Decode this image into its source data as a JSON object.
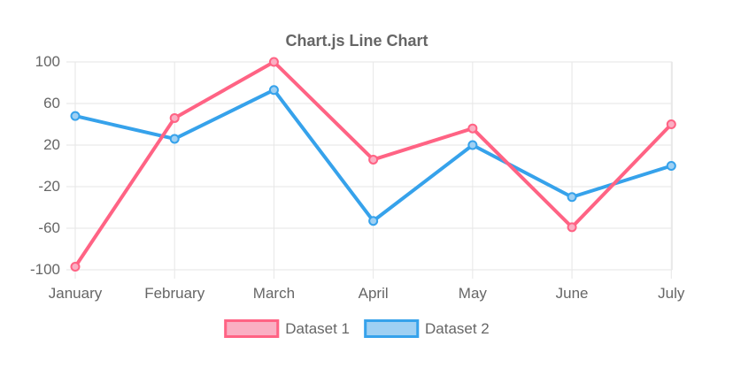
{
  "chart_data": {
    "type": "line",
    "title": "Chart.js Line Chart",
    "categories": [
      "January",
      "February",
      "March",
      "April",
      "May",
      "June",
      "July"
    ],
    "series": [
      {
        "name": "Dataset 1",
        "color": "#FF6384",
        "point_fill": "#FAAFC3",
        "values": [
          -97,
          46,
          100,
          6,
          36,
          -59,
          40
        ]
      },
      {
        "name": "Dataset 2",
        "color": "#36A2EB",
        "point_fill": "#9FD0F3",
        "values": [
          48,
          26,
          73,
          -53,
          20,
          -30,
          0
        ]
      }
    ],
    "yticks": [
      100,
      60,
      20,
      -20,
      -60,
      -100
    ],
    "ylim": [
      -100,
      100
    ],
    "xlabel": "",
    "ylabel": "",
    "grid": true,
    "legend_position": "bottom",
    "text_color": "#666666",
    "grid_color": "#E6E6E6",
    "background_color": "#FFFFFF"
  }
}
